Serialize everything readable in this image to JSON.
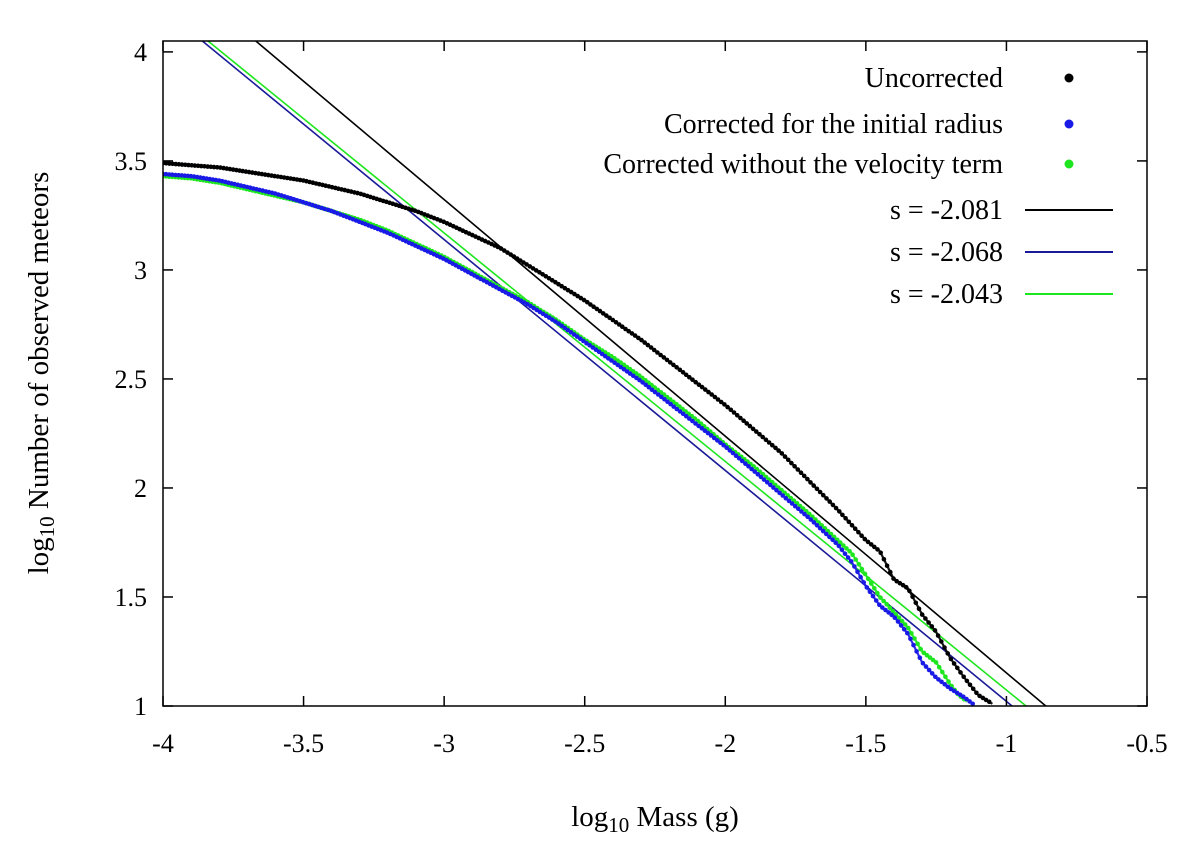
{
  "chart_data": {
    "type": "scatter",
    "title": "",
    "xlabel": {
      "base": "log",
      "sub": "10",
      "rest": " Mass (g)"
    },
    "ylabel": {
      "base": "log",
      "sub": "10",
      "rest": " Number of observed meteors"
    },
    "xlim": [
      -4,
      -0.5
    ],
    "ylim": [
      1,
      4.05
    ],
    "grid": false,
    "legend_position": "top-right",
    "x_ticks": [
      -4,
      -3.5,
      -3,
      -2.5,
      -2,
      -1.5,
      -1,
      -0.5
    ],
    "x_tick_labels": [
      "-4",
      "-3.5",
      "-3",
      "-2.5",
      "-2",
      "-1.5",
      "-1",
      "-0.5"
    ],
    "y_ticks": [
      1,
      1.5,
      2,
      2.5,
      3,
      3.5,
      4
    ],
    "y_tick_labels": [
      "1",
      "1.5",
      "2",
      "2.5",
      "3",
      "3.5",
      "4"
    ],
    "series": [
      {
        "name": "Uncorrected",
        "kind": "points",
        "color": "#000000",
        "x": [
          -4.0,
          -3.9,
          -3.8,
          -3.7,
          -3.6,
          -3.5,
          -3.4,
          -3.3,
          -3.2,
          -3.1,
          -3.0,
          -2.9,
          -2.8,
          -2.7,
          -2.6,
          -2.5,
          -2.4,
          -2.3,
          -2.2,
          -2.1,
          -2.0,
          -1.9,
          -1.8,
          -1.7,
          -1.6,
          -1.5,
          -1.45,
          -1.4,
          -1.35,
          -1.3,
          -1.25,
          -1.2,
          -1.15,
          -1.1,
          -1.05
        ],
        "y": [
          3.49,
          3.48,
          3.47,
          3.45,
          3.43,
          3.41,
          3.38,
          3.35,
          3.31,
          3.27,
          3.22,
          3.16,
          3.1,
          3.02,
          2.94,
          2.86,
          2.77,
          2.68,
          2.58,
          2.48,
          2.38,
          2.27,
          2.16,
          2.03,
          1.9,
          1.76,
          1.71,
          1.58,
          1.54,
          1.42,
          1.34,
          1.22,
          1.13,
          1.05,
          1.01
        ]
      },
      {
        "name": "Corrected for the initial radius",
        "kind": "points",
        "color": "#1a1ae6",
        "x": [
          -4.0,
          -3.9,
          -3.8,
          -3.7,
          -3.6,
          -3.5,
          -3.4,
          -3.3,
          -3.2,
          -3.1,
          -3.0,
          -2.9,
          -2.8,
          -2.7,
          -2.6,
          -2.5,
          -2.4,
          -2.3,
          -2.2,
          -2.1,
          -2.0,
          -1.9,
          -1.8,
          -1.7,
          -1.6,
          -1.55,
          -1.5,
          -1.45,
          -1.4,
          -1.35,
          -1.3,
          -1.25,
          -1.2,
          -1.15,
          -1.12
        ],
        "y": [
          3.44,
          3.43,
          3.41,
          3.38,
          3.35,
          3.31,
          3.27,
          3.22,
          3.17,
          3.11,
          3.05,
          2.98,
          2.91,
          2.84,
          2.76,
          2.67,
          2.58,
          2.49,
          2.39,
          2.29,
          2.19,
          2.08,
          1.97,
          1.86,
          1.74,
          1.66,
          1.55,
          1.46,
          1.41,
          1.33,
          1.2,
          1.13,
          1.08,
          1.04,
          1.01
        ]
      },
      {
        "name": "Corrected without the velocity term",
        "kind": "points",
        "color": "#1ee61e",
        "x": [
          -4.0,
          -3.9,
          -3.8,
          -3.7,
          -3.6,
          -3.5,
          -3.4,
          -3.3,
          -3.2,
          -3.1,
          -3.0,
          -2.9,
          -2.8,
          -2.7,
          -2.6,
          -2.5,
          -2.4,
          -2.3,
          -2.2,
          -2.1,
          -2.0,
          -1.9,
          -1.8,
          -1.7,
          -1.6,
          -1.55,
          -1.5,
          -1.45,
          -1.4,
          -1.35,
          -1.3,
          -1.25,
          -1.2,
          -1.17,
          -1.14
        ],
        "y": [
          3.43,
          3.42,
          3.4,
          3.37,
          3.34,
          3.31,
          3.27,
          3.23,
          3.18,
          3.12,
          3.06,
          2.99,
          2.92,
          2.85,
          2.77,
          2.68,
          2.6,
          2.51,
          2.41,
          2.31,
          2.2,
          2.1,
          1.99,
          1.88,
          1.76,
          1.7,
          1.6,
          1.5,
          1.43,
          1.36,
          1.25,
          1.2,
          1.1,
          1.05,
          1.02
        ]
      },
      {
        "name": "s = -2.081",
        "kind": "line",
        "color": "#000000",
        "x": [
          -3.67,
          -0.86
        ],
        "y": [
          4.05,
          1.0
        ]
      },
      {
        "name": "s = -2.068",
        "kind": "line",
        "color": "#1a1a99",
        "x": [
          -3.86,
          -0.98
        ],
        "y": [
          4.05,
          1.0
        ]
      },
      {
        "name": "s = -2.043",
        "kind": "line",
        "color": "#1ee61e",
        "x": [
          -3.84,
          -0.93
        ],
        "y": [
          4.05,
          1.0
        ]
      }
    ]
  }
}
